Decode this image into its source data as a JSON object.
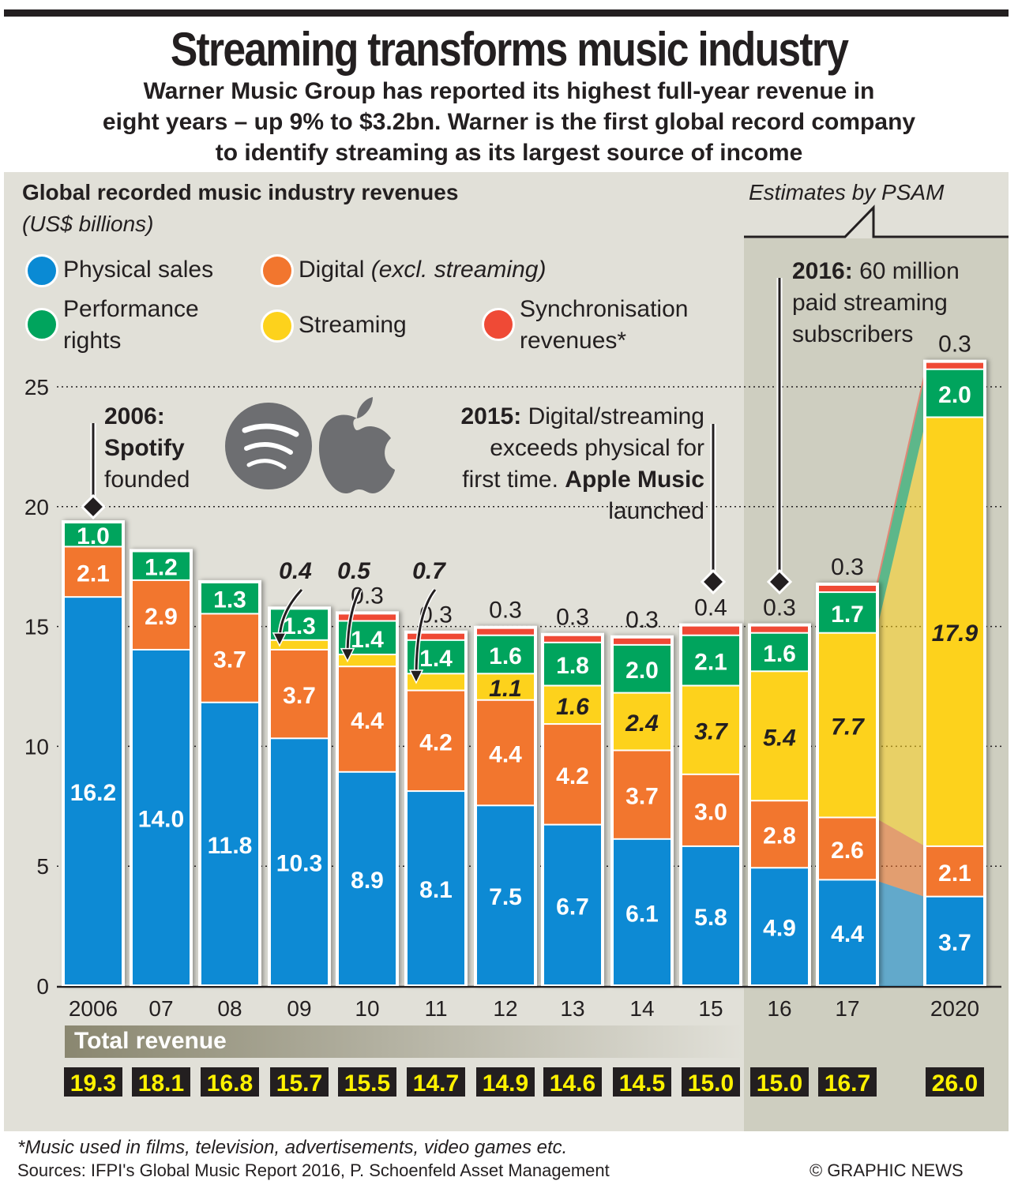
{
  "header": {
    "title": "Streaming transforms music industry",
    "subtitle": "Warner Music Group has reported its highest full-year revenue in\neight years – up 9% to $3.2bn. Warner is the first global record company\nto identify streaming as its largest source of income"
  },
  "chart_header": {
    "title": "Global recorded music industry revenues",
    "unit": "(US$ billions)",
    "estimates_label": "Estimates by PSAM"
  },
  "legend": [
    {
      "label": "Physical sales",
      "label_italic": "",
      "color": "#0a8ad4"
    },
    {
      "label": "Digital",
      "label_italic": "(excl. streaming)",
      "color": "#f2762e"
    },
    {
      "label": "Performance\nrights",
      "label_italic": "",
      "color": "#00a45d"
    },
    {
      "label": "Streaming",
      "label_italic": "",
      "color": "#fdd21c"
    },
    {
      "label": "Synchronisation\nrevenues*",
      "label_italic": "",
      "color": "#ef4a36"
    }
  ],
  "annotations": {
    "a2006_bold": "2006:",
    "a2006_bold2": "Spotify",
    "a2006_text": "founded",
    "a2015_bold": "2015:",
    "a2015_text1": " Digital/streaming",
    "a2015_text2": "exceeds physical for",
    "a2015_text3": "first time. ",
    "a2015_bold2": "Apple Music",
    "a2015_text4": "launched",
    "a2016_bold": "2016:",
    "a2016_text1": " 60 million",
    "a2016_text2": "paid streaming",
    "a2016_text3": "subscribers"
  },
  "total_revenue_label": "Total revenue",
  "footer": {
    "footnote": "*Music used in films, television, advertisements, video games etc.",
    "sources": "Sources: IFPI's Global Music Report 2016, P. Schoenfeld Asset Management",
    "credit": "© GRAPHIC NEWS"
  },
  "chart_data": {
    "type": "bar",
    "stacked": true,
    "title": "Global recorded music industry revenues",
    "ylabel": "US$ billions",
    "ylim": [
      0,
      25
    ],
    "yticks": [
      0,
      5,
      10,
      15,
      20,
      25
    ],
    "grid": true,
    "categories": [
      "2006",
      "07",
      "08",
      "09",
      "10",
      "11",
      "12",
      "13",
      "14",
      "15",
      "16",
      "17",
      "2020"
    ],
    "estimated_categories": [
      "16",
      "17",
      "2020"
    ],
    "series": [
      {
        "name": "Physical sales",
        "color": "#0a8ad4",
        "values": [
          16.2,
          14.0,
          11.8,
          10.3,
          8.9,
          8.1,
          7.5,
          6.7,
          6.1,
          5.8,
          4.9,
          4.4,
          3.7
        ]
      },
      {
        "name": "Digital (excl. streaming)",
        "color": "#f2762e",
        "values": [
          2.1,
          2.9,
          3.7,
          3.7,
          4.4,
          4.2,
          4.4,
          4.2,
          3.7,
          3.0,
          2.8,
          2.6,
          2.1
        ]
      },
      {
        "name": "Streaming",
        "color": "#fdd21c",
        "values": [
          0,
          0,
          0,
          0.4,
          0.5,
          0.7,
          1.1,
          1.6,
          2.4,
          3.7,
          5.4,
          7.7,
          17.9
        ]
      },
      {
        "name": "Performance rights",
        "color": "#00a45d",
        "values": [
          1.0,
          1.2,
          1.3,
          1.3,
          1.4,
          1.4,
          1.6,
          1.8,
          2.0,
          2.1,
          1.6,
          1.7,
          2.0
        ]
      },
      {
        "name": "Synchronisation revenues*",
        "color": "#ef4a36",
        "values": [
          0,
          0,
          0,
          0,
          0.3,
          0.3,
          0.3,
          0.3,
          0.3,
          0.4,
          0.3,
          0.3,
          0.3
        ]
      }
    ],
    "totals": [
      "19.3",
      "18.1",
      "16.8",
      "15.7",
      "15.5",
      "14.7",
      "14.9",
      "14.6",
      "14.5",
      "15.0",
      "15.0",
      "16.7",
      "26.0"
    ],
    "value_labels": {
      "physical": [
        "16.2",
        "14.0",
        "11.8",
        "10.3",
        "8.9",
        "8.1",
        "7.5",
        "6.7",
        "6.1",
        "5.8",
        "4.9",
        "4.4",
        "3.7"
      ],
      "digital": [
        "2.1",
        "2.9",
        "3.7",
        "3.7",
        "4.4",
        "4.2",
        "4.4",
        "4.2",
        "3.7",
        "3.0",
        "2.8",
        "2.6",
        "2.1"
      ],
      "streaming": [
        "",
        "",
        "",
        "0.4",
        "0.5",
        "0.7",
        "1.1",
        "1.6",
        "2.4",
        "3.7",
        "5.4",
        "7.7",
        "17.9"
      ],
      "performance": [
        "1.0",
        "1.2",
        "1.3",
        "1.3",
        "1.4",
        "1.4",
        "1.6",
        "1.8",
        "2.0",
        "2.1",
        "1.6",
        "1.7",
        "2.0"
      ],
      "sync": [
        "",
        "",
        "",
        "",
        "0.3",
        "0.3",
        "0.3",
        "0.3",
        "0.3",
        "0.4",
        "0.3",
        "0.3",
        "0.3"
      ]
    }
  }
}
